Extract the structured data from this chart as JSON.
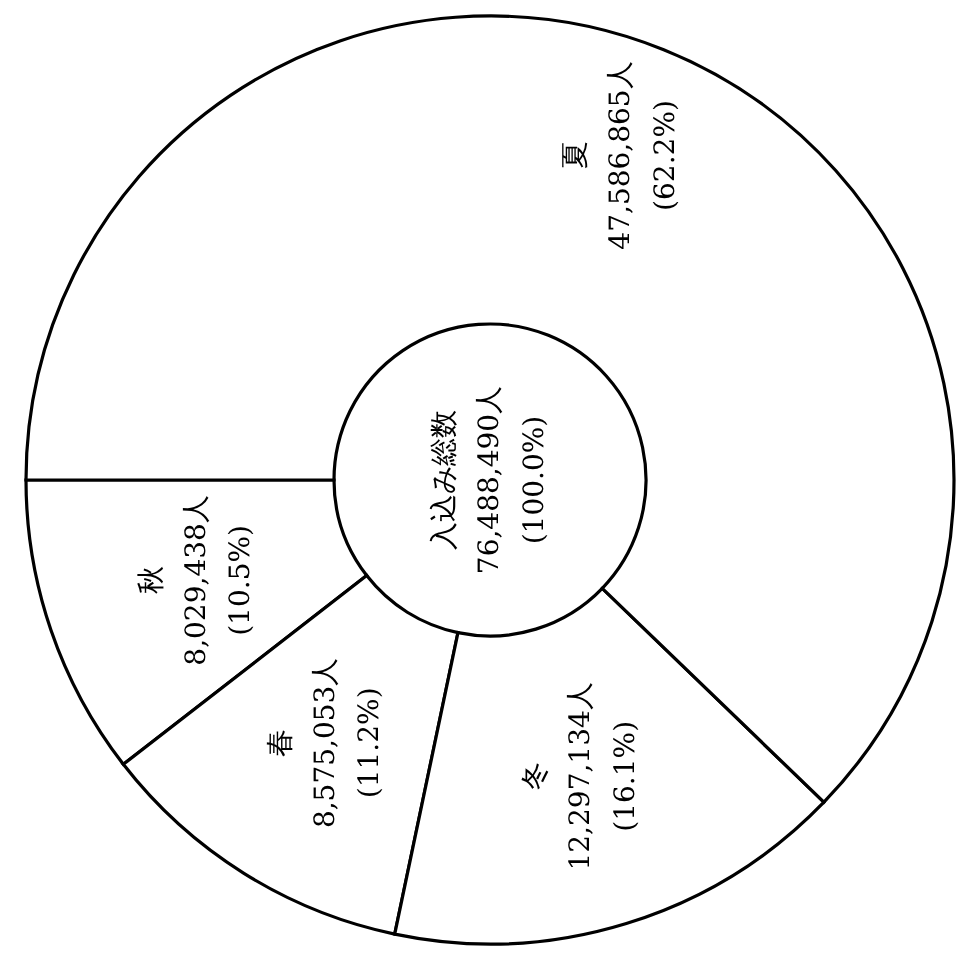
{
  "chart_data": {
    "type": "donut",
    "categories": [
      "秋",
      "春",
      "冬",
      "夏"
    ],
    "values": [
      8029438,
      8575053,
      12297134,
      47586865
    ],
    "value_labels": [
      "8,029,438人\n(10.5%)",
      "8,575,053人\n(11.2%)",
      "12,297,134人\n(16.1%)",
      "47,586,865人\n(62.2%)"
    ],
    "colors": [
      "#ffffff",
      "#ffffff",
      "#ffffff",
      "#ffffff"
    ],
    "annotations": [
      "入込み総数\n76,488,490人\n(100.0%)"
    ]
  }
}
